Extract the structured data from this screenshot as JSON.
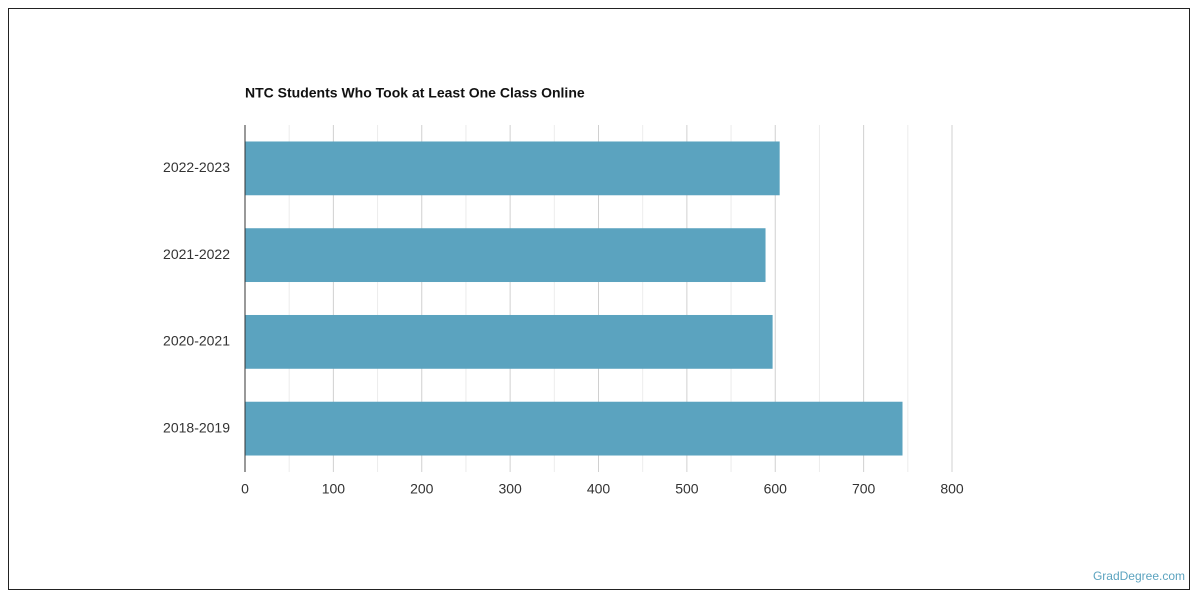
{
  "chart_data": {
    "type": "barh",
    "title": "NTC Students Who Took at Least One Class Online",
    "categories": [
      "2022-2023",
      "2021-2022",
      "2020-2021",
      "2018-2019"
    ],
    "values": [
      605,
      589,
      597,
      744
    ],
    "color": "#5ba3bf",
    "xlim": [
      0,
      800
    ],
    "xticks": [
      0,
      100,
      200,
      300,
      400,
      500,
      600,
      700,
      800
    ],
    "xminorticks": [
      50,
      150,
      250,
      350,
      450,
      550,
      650,
      750
    ],
    "grid": true
  },
  "footer": {
    "source": "GradDegree.com"
  }
}
